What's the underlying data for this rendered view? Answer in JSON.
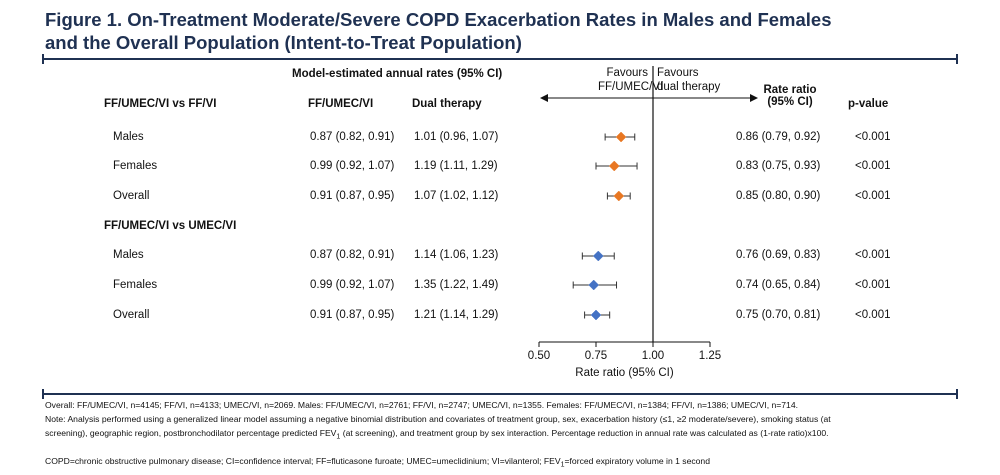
{
  "title_line1": "Figure 1. On-Treatment Moderate/Severe COPD Exacerbation Rates in Males and Females",
  "title_line2": "and the Overall Population (Intent-to-Treat Population)",
  "colors": {
    "accent": "#1f3152",
    "orange": "#e87722",
    "blue": "#4472c4"
  },
  "headers": {
    "model_rates": "Model-estimated annual rates (95% CI)",
    "col_ffumecvi": "FF/UMEC/VI",
    "col_dual": "Dual therapy",
    "rate_ratio": "Rate ratio",
    "rate_ratio_ci": "(95% CI)",
    "pvalue": "p-value",
    "favours_left_1": "Favours",
    "favours_left_2": "FF/UMEC/VI",
    "favours_right_1": "Favours",
    "favours_right_2": "dual therapy"
  },
  "groups": [
    {
      "label": "FF/UMEC/VI vs FF/VI",
      "rows": [
        {
          "label": "Males",
          "ffumecvi": "0.87 (0.82, 0.91)",
          "dual": "1.01 (0.96, 1.07)",
          "rr": "0.86 (0.79, 0.92)",
          "p": "<0.001"
        },
        {
          "label": "Females",
          "ffumecvi": "0.99 (0.92, 1.07)",
          "dual": "1.19 (1.11, 1.29)",
          "rr": "0.83 (0.75, 0.93)",
          "p": "<0.001"
        },
        {
          "label": "Overall",
          "ffumecvi": "0.91 (0.87, 0.95)",
          "dual": "1.07 (1.02, 1.12)",
          "rr": "0.85 (0.80, 0.90)",
          "p": "<0.001"
        }
      ]
    },
    {
      "label": "FF/UMEC/VI vs UMEC/VI",
      "rows": [
        {
          "label": "Males",
          "ffumecvi": "0.87 (0.82, 0.91)",
          "dual": "1.14 (1.06, 1.23)",
          "rr": "0.76 (0.69, 0.83)",
          "p": "<0.001"
        },
        {
          "label": "Females",
          "ffumecvi": "0.99 (0.92, 1.07)",
          "dual": "1.35 (1.22, 1.49)",
          "rr": "0.74 (0.65, 0.84)",
          "p": "<0.001"
        },
        {
          "label": "Overall",
          "ffumecvi": "0.91 (0.87, 0.95)",
          "dual": "1.21 (1.14, 1.29)",
          "rr": "0.75 (0.70, 0.81)",
          "p": "<0.001"
        }
      ]
    }
  ],
  "chart_data": {
    "type": "scatter",
    "xlabel": "Rate ratio (95% CI)",
    "xlim": [
      0.5,
      1.25
    ],
    "xticks": [
      0.5,
      0.75,
      1.0,
      1.25
    ],
    "xtick_labels": [
      "0.50",
      "0.75",
      "1.00",
      "1.25"
    ],
    "reference_line": 1.0,
    "series": [
      {
        "comparison": "FF/UMEC/VI vs FF/VI",
        "color": "#e87722",
        "points": [
          {
            "group": "Males",
            "estimate": 0.86,
            "lower": 0.79,
            "upper": 0.92
          },
          {
            "group": "Females",
            "estimate": 0.83,
            "lower": 0.75,
            "upper": 0.93
          },
          {
            "group": "Overall",
            "estimate": 0.85,
            "lower": 0.8,
            "upper": 0.9
          }
        ]
      },
      {
        "comparison": "FF/UMEC/VI vs UMEC/VI",
        "color": "#4472c4",
        "points": [
          {
            "group": "Males",
            "estimate": 0.76,
            "lower": 0.69,
            "upper": 0.83
          },
          {
            "group": "Females",
            "estimate": 0.74,
            "lower": 0.65,
            "upper": 0.84
          },
          {
            "group": "Overall",
            "estimate": 0.75,
            "lower": 0.7,
            "upper": 0.81
          }
        ]
      }
    ]
  },
  "footnotes": {
    "line1": "Overall: FF/UMEC/VI, n=4145; FF/VI, n=4133; UMEC/VI, n=2069. Males: FF/UMEC/VI, n=2761; FF/VI, n=2747; UMEC/VI, n=1355. Females: FF/UMEC/VI, n=1384; FF/VI, n=1386; UMEC/VI, n=714.",
    "line2": "Note: Analysis performed using a generalized linear model assuming a negative binomial distribution and covariates of treatment group, sex, exacerbation history (≤1, ≥2 moderate/severe), smoking status (at",
    "line3_a": "screening), geographic region, postbronchodilator percentage predicted FEV",
    "line3_sub": "1",
    "line3_b": " (at screening), and treatment group by sex interaction. Percentage reduction in annual rate was calculated as (1-rate ratio)x100.",
    "line4_a": "COPD=chronic obstructive pulmonary disease; CI=confidence interval; FF=fluticasone furoate; UMEC=umeclidinium; VI=vilanterol; FEV",
    "line4_sub": "1",
    "line4_b": "=forced expiratory volume in 1 second"
  }
}
